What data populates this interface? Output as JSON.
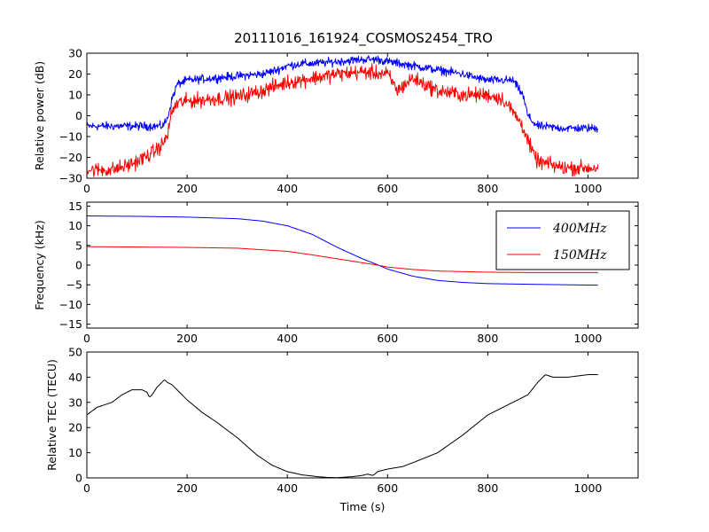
{
  "title": "20111016_161924_COSMOS2454_TRO",
  "colors": {
    "blue": "#0000ff",
    "red": "#ff0000",
    "black": "#000000"
  },
  "chart_data": [
    {
      "type": "line",
      "ylabel": "Relative power (dB)",
      "xlim": [
        0,
        1100
      ],
      "ylim": [
        -30,
        30
      ],
      "xticks": [
        "0",
        "200",
        "400",
        "600",
        "800",
        "1000"
      ],
      "yticks": [
        "-30",
        "-20",
        "-10",
        "0",
        "10",
        "20",
        "30"
      ],
      "series": [
        {
          "color": "#0000ff",
          "noise": 2.0,
          "x": [
            0,
            50,
            100,
            150,
            160,
            170,
            180,
            200,
            250,
            300,
            350,
            380,
            400,
            430,
            450,
            500,
            550,
            580,
            600,
            650,
            700,
            750,
            780,
            800,
            830,
            850,
            870,
            880,
            890,
            900,
            950,
            1020
          ],
          "values": [
            -5,
            -5,
            -5,
            -5,
            -2,
            8,
            15,
            17,
            18,
            19,
            20,
            22,
            24,
            25,
            25,
            26,
            27,
            27,
            26,
            24,
            22,
            20,
            18,
            17,
            17,
            17,
            10,
            0,
            -3,
            -5,
            -6,
            -6
          ]
        },
        {
          "color": "#ff0000",
          "noise": 3.5,
          "x": [
            0,
            50,
            80,
            100,
            130,
            150,
            160,
            170,
            180,
            200,
            250,
            300,
            350,
            400,
            450,
            500,
            550,
            600,
            620,
            650,
            700,
            750,
            800,
            830,
            850,
            870,
            880,
            890,
            900,
            950,
            1020
          ],
          "values": [
            -26,
            -26,
            -24,
            -22,
            -18,
            -14,
            -10,
            2,
            6,
            7,
            8,
            9,
            12,
            16,
            18,
            20,
            21,
            20,
            12,
            18,
            12,
            10,
            10,
            8,
            2,
            -5,
            -12,
            -18,
            -22,
            -25,
            -25
          ]
        }
      ]
    },
    {
      "type": "line",
      "ylabel": "Frequency (kHz)",
      "xlim": [
        0,
        1100
      ],
      "ylim": [
        -16,
        16
      ],
      "xticks": [
        "0",
        "200",
        "400",
        "600",
        "800",
        "1000"
      ],
      "yticks": [
        "-15",
        "-10",
        "-5",
        "0",
        "5",
        "10",
        "15"
      ],
      "legend_position": "upper right",
      "series": [
        {
          "name": "400MHz",
          "color": "#0000ff",
          "x": [
            0,
            100,
            200,
            300,
            350,
            400,
            450,
            500,
            550,
            580,
            600,
            650,
            700,
            750,
            800,
            900,
            1020
          ],
          "values": [
            12.5,
            12.4,
            12.2,
            11.8,
            11.2,
            10.0,
            7.8,
            4.5,
            1.6,
            0.1,
            -1.0,
            -2.8,
            -3.9,
            -4.4,
            -4.7,
            -4.9,
            -5.1
          ]
        },
        {
          "name": "150MHz",
          "color": "#ff0000",
          "x": [
            0,
            100,
            200,
            300,
            400,
            450,
            500,
            550,
            580,
            600,
            650,
            700,
            800,
            900,
            1020
          ],
          "values": [
            4.7,
            4.6,
            4.5,
            4.3,
            3.5,
            2.6,
            1.6,
            0.6,
            0.0,
            -0.5,
            -1.1,
            -1.5,
            -1.8,
            -1.9,
            -1.9
          ]
        }
      ]
    },
    {
      "type": "line",
      "xlabel": "Time (s)",
      "ylabel": "Relative TEC (TECU)",
      "xlim": [
        0,
        1100
      ],
      "ylim": [
        0,
        50
      ],
      "xticks": [
        "0",
        "200",
        "400",
        "600",
        "800",
        "1000"
      ],
      "yticks": [
        "0",
        "10",
        "20",
        "30",
        "40",
        "50"
      ],
      "series": [
        {
          "color": "#000000",
          "x": [
            0,
            20,
            50,
            70,
            90,
            110,
            120,
            125,
            130,
            140,
            150,
            155,
            160,
            170,
            180,
            200,
            230,
            260,
            300,
            340,
            370,
            400,
            430,
            460,
            480,
            500,
            530,
            550,
            560,
            570,
            575,
            580,
            600,
            630,
            650,
            700,
            750,
            800,
            850,
            880,
            900,
            915,
            930,
            960,
            1000,
            1020
          ],
          "values": [
            25,
            28,
            30,
            33,
            35,
            35,
            34,
            32,
            33,
            36,
            38,
            39,
            38,
            37,
            35,
            31,
            26,
            22,
            16,
            9,
            5,
            2.5,
            1.2,
            0.5,
            0.2,
            0.1,
            0.5,
            1,
            1.5,
            1,
            1.5,
            2.5,
            3.5,
            4.5,
            6,
            10,
            17,
            25,
            30,
            33,
            38,
            41,
            40,
            40,
            41,
            41
          ]
        }
      ]
    }
  ]
}
